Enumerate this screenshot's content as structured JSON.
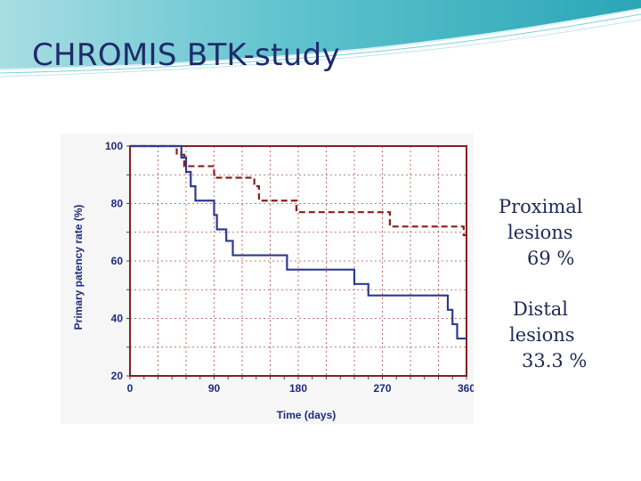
{
  "slide": {
    "title": "CHROMIS BTK-study"
  },
  "annotations": [
    {
      "label_line1": "Proximal",
      "label_line2": "lesions",
      "value": "69 %"
    },
    {
      "label_line1": "Distal",
      "label_line2": "lesions",
      "value": "33.3 %"
    }
  ],
  "colors": {
    "proximal": "#8b1c1c",
    "distal": "#2e3a8c",
    "axis_text": "#1f2a7a",
    "title": "#1f2a6b"
  },
  "chart_data": {
    "type": "line",
    "title": "",
    "xlabel": "Time (days)",
    "ylabel": "Primary patency rate (%)",
    "xlim": [
      0,
      360
    ],
    "ylim": [
      20,
      100
    ],
    "xticks": [
      0,
      90,
      180,
      270,
      360
    ],
    "yticks": [
      20,
      40,
      60,
      80,
      100
    ],
    "grid": true,
    "legend": "none",
    "series": [
      {
        "line_style": "dashed",
        "color": "#8b1c1c",
        "x": [
          0,
          45,
          50,
          58,
          90,
          133,
          138,
          178,
          278,
          357,
          360
        ],
        "y": [
          100,
          100,
          97,
          93,
          89,
          86,
          81,
          77,
          72,
          69,
          69
        ]
      },
      {
        "line_style": "solid",
        "color": "#2e3a8c",
        "x": [
          0,
          40,
          55,
          60,
          65,
          70,
          90,
          93,
          103,
          110,
          168,
          240,
          255,
          340,
          345,
          350,
          360
        ],
        "y": [
          100,
          100,
          96,
          91,
          86,
          81,
          76,
          71,
          67,
          62,
          57,
          52,
          48,
          43,
          38,
          33,
          33
        ]
      }
    ]
  }
}
